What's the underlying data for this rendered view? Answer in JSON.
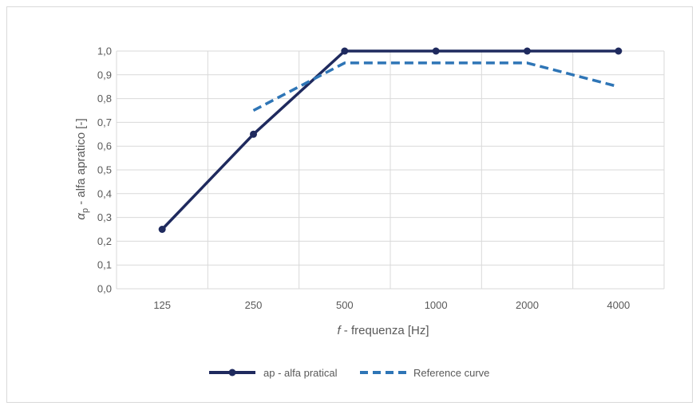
{
  "chart_data": {
    "type": "line",
    "categories": [
      "125",
      "250",
      "500",
      "1000",
      "2000",
      "4000"
    ],
    "series": [
      {
        "name": "ap - alfa pratical",
        "values": [
          0.25,
          0.65,
          1.0,
          1.0,
          1.0,
          1.0
        ],
        "color": "#1f2a5e",
        "style": "solid",
        "markers": true
      },
      {
        "name": "Reference curve",
        "values": [
          null,
          0.75,
          0.95,
          0.95,
          0.95,
          0.85
        ],
        "color": "#2e75b6",
        "style": "dashed",
        "markers": false
      }
    ],
    "xlabel_italic": "f",
    "xlabel_rest": " - frequenza [Hz]",
    "ylabel_symbol": "α",
    "ylabel_sub": "p",
    "ylabel_rest": " - alfa apratico [-]",
    "ylim": [
      0,
      1.0
    ],
    "yticks": [
      "0,0",
      "0,1",
      "0,2",
      "0,3",
      "0,4",
      "0,5",
      "0,6",
      "0,7",
      "0,8",
      "0,9",
      "1,0"
    ],
    "grid": true,
    "legend_position": "bottom"
  }
}
